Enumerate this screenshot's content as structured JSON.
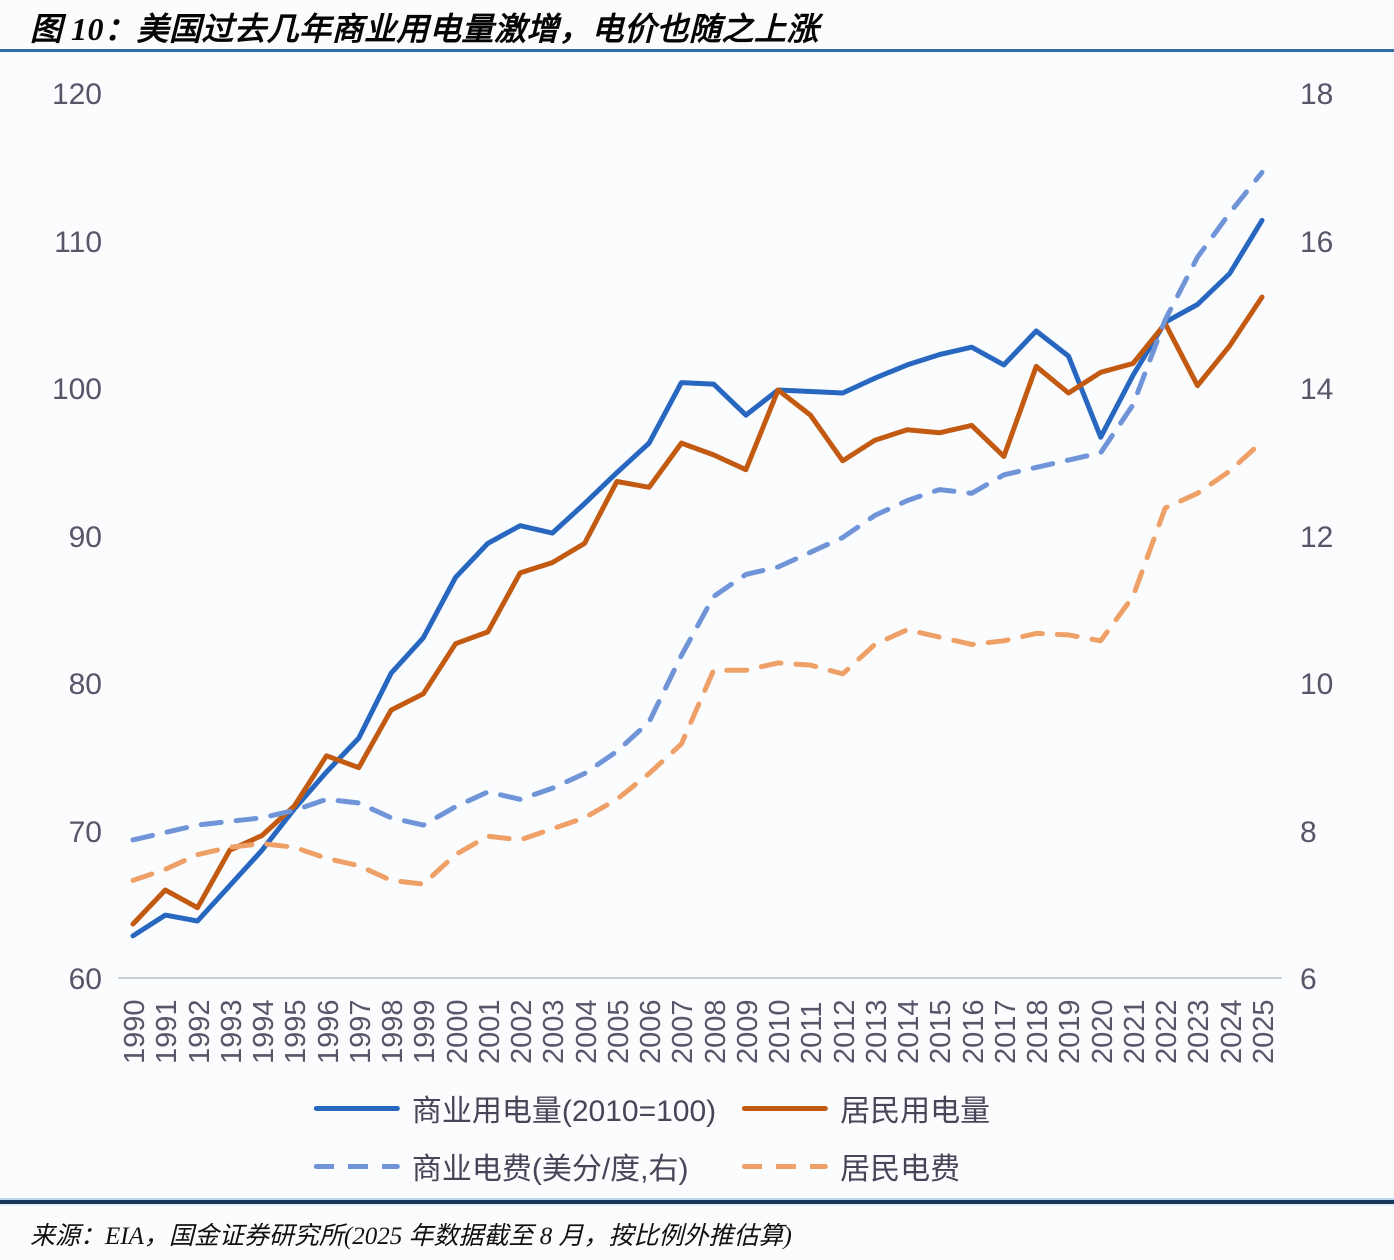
{
  "title": "图 10：美国过去几年商业用电量激增，电价也随之上涨",
  "source": "来源：EIA，国金证券研究所(2025 年数据截至 8 月，按比例外推估算)",
  "colors": {
    "commercial_use_line": "#2767c0",
    "residential_use_line": "#c35a11",
    "commercial_price_line": "#6f94d8",
    "residential_price_line": "#efa066",
    "title_rule": "#2e6da4",
    "bottom_rule": "#16365c",
    "axis_text": "#5a5468",
    "axis_line": "#c9cdd4",
    "background": "#fafcfe"
  },
  "chart_data": {
    "type": "line",
    "title": "图 10：美国过去几年商业用电量激增，电价也随之上涨",
    "grid": false,
    "legend_position": "bottom",
    "x": [
      1990,
      1991,
      1992,
      1993,
      1994,
      1995,
      1996,
      1997,
      1998,
      1999,
      2000,
      2001,
      2002,
      2003,
      2004,
      2005,
      2006,
      2007,
      2008,
      2009,
      2010,
      2011,
      2012,
      2013,
      2014,
      2015,
      2016,
      2017,
      2018,
      2019,
      2020,
      2021,
      2022,
      2023,
      2024,
      2025
    ],
    "left_axis": {
      "ticks": [
        60,
        70,
        80,
        90,
        100,
        110,
        120
      ],
      "range": [
        60,
        120
      ]
    },
    "right_axis": {
      "ticks": [
        6,
        8,
        10,
        12,
        14,
        16,
        18
      ],
      "range": [
        6,
        18
      ]
    },
    "series": [
      {
        "name": "商业用电量(2010=100)",
        "axis": "left",
        "style": "solid",
        "color": "#2767c0",
        "values": [
          63.0,
          64.4,
          64.0,
          66.4,
          68.8,
          71.6,
          74.1,
          76.4,
          80.8,
          83.2,
          87.3,
          89.6,
          90.8,
          90.3,
          92.3,
          94.4,
          96.4,
          100.5,
          100.4,
          98.3,
          100.0,
          99.9,
          99.8,
          100.8,
          101.7,
          102.4,
          102.9,
          101.7,
          104.0,
          102.3,
          96.8,
          101.0,
          104.6,
          105.8,
          107.9,
          111.5
        ]
      },
      {
        "name": "居民用电量",
        "axis": "left",
        "style": "solid",
        "color": "#c35a11",
        "values": [
          63.8,
          66.1,
          64.9,
          68.8,
          69.8,
          71.8,
          75.2,
          74.4,
          78.3,
          79.4,
          82.8,
          83.6,
          87.6,
          88.3,
          89.6,
          93.8,
          93.4,
          96.4,
          95.6,
          94.6,
          100.0,
          98.3,
          95.2,
          96.6,
          97.3,
          97.1,
          97.6,
          95.5,
          101.6,
          99.8,
          101.2,
          101.8,
          104.5,
          100.3,
          103.0,
          106.3
        ]
      },
      {
        "name": "商业电费(美分/度,右)",
        "axis": "right",
        "style": "dashed",
        "color": "#6f94d8",
        "values": [
          7.9,
          8.0,
          8.1,
          8.15,
          8.2,
          8.3,
          8.45,
          8.4,
          8.2,
          8.1,
          8.35,
          8.55,
          8.45,
          8.6,
          8.8,
          9.1,
          9.5,
          10.4,
          11.2,
          11.5,
          11.6,
          11.8,
          12.0,
          12.3,
          12.5,
          12.65,
          12.6,
          12.85,
          12.95,
          13.05,
          13.15,
          13.8,
          14.95,
          15.8,
          16.4,
          16.95
        ]
      },
      {
        "name": "居民电费",
        "axis": "right",
        "style": "dashed",
        "color": "#efa066",
        "values": [
          7.35,
          7.5,
          7.7,
          7.8,
          7.85,
          7.8,
          7.65,
          7.55,
          7.35,
          7.3,
          7.7,
          7.95,
          7.9,
          8.05,
          8.2,
          8.45,
          8.8,
          9.2,
          10.2,
          10.2,
          10.3,
          10.27,
          10.15,
          10.55,
          10.75,
          10.65,
          10.55,
          10.6,
          10.7,
          10.68,
          10.6,
          11.2,
          12.4,
          12.6,
          12.9,
          13.3
        ]
      }
    ]
  }
}
